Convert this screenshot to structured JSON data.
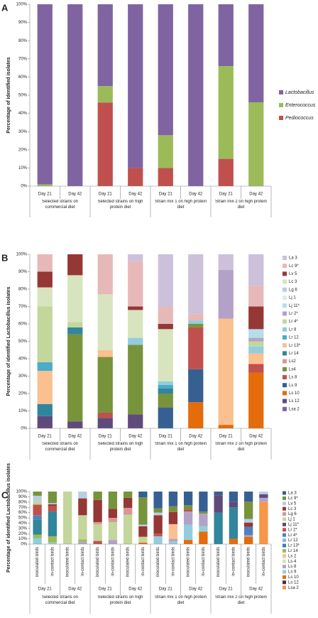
{
  "chart_data": [
    {
      "type": "bar",
      "stacked": true,
      "panel_label": "A",
      "ylabel": "Percentage of identified isolates",
      "categories": [
        "Day 21",
        "Day 42",
        "Day 21",
        "Day 42",
        "Day 21",
        "Day 42",
        "Day 21",
        "Day 42"
      ],
      "groups": [
        "Selected strains on commercial diet",
        "Selected strains on high protein diet",
        "Strain mix 1 on high protein diet",
        "Strain mix 2 on high protein diet"
      ],
      "ylim": [
        0,
        100
      ],
      "yticks": [
        {
          "value": 0,
          "label": "0%"
        },
        {
          "value": 10,
          "label": "10%"
        },
        {
          "value": 20,
          "label": "20%"
        },
        {
          "value": 30,
          "label": "30%"
        },
        {
          "value": 40,
          "label": "40%"
        },
        {
          "value": 50,
          "label": "50%"
        },
        {
          "value": 60,
          "label": "60%"
        },
        {
          "value": 70,
          "label": "70%"
        },
        {
          "value": 80,
          "label": "80%"
        },
        {
          "value": 90,
          "label": "90%"
        },
        {
          "value": 100,
          "label": "100%"
        }
      ],
      "legend": "right",
      "series": [
        {
          "name": "Lactobacillus",
          "color": "#8064a2",
          "values": [
            99,
            100,
            45,
            90,
            72,
            100,
            34,
            54
          ]
        },
        {
          "name": "Enterococcus",
          "color": "#9bbb59",
          "values": [
            1,
            0,
            9,
            0,
            18,
            0,
            51,
            46
          ]
        },
        {
          "name": "Pediococcus",
          "color": "#c0504d",
          "values": [
            0,
            0,
            46,
            10,
            10,
            0,
            15,
            0
          ]
        }
      ]
    },
    {
      "type": "bar",
      "stacked": true,
      "panel_label": "B",
      "ylabel": "Percentage of identified Lactobacillus isolates",
      "categories": [
        "Day 21",
        "Day 42",
        "Day 21",
        "Day 42",
        "Day 21",
        "Day 42",
        "Day 21",
        "Day 42"
      ],
      "groups": [
        "Selected strains on commercial diet",
        "Selected strains on high protein diet",
        "Strain mix 1 on high protein diet",
        "Strain mix 2 on high protein diet"
      ],
      "ylim": [
        0,
        100
      ],
      "yticks": [
        {
          "value": 0,
          "label": "0%"
        },
        {
          "value": 10,
          "label": "10%"
        },
        {
          "value": 20,
          "label": "20%"
        },
        {
          "value": 30,
          "label": "30%"
        },
        {
          "value": 40,
          "label": "40%"
        },
        {
          "value": 50,
          "label": "50%"
        },
        {
          "value": 60,
          "label": "60%"
        },
        {
          "value": 70,
          "label": "70%"
        },
        {
          "value": 80,
          "label": "80%"
        },
        {
          "value": 90,
          "label": "90%"
        },
        {
          "value": 100,
          "label": "100%"
        }
      ],
      "legend": "right",
      "series": [
        {
          "name": "La 3",
          "color": "#ccc0da",
          "values": [
            0,
            0,
            0,
            4,
            30,
            34,
            9,
            18
          ]
        },
        {
          "name": "Lc 9*",
          "color": "#e6b9b8",
          "values": [
            10,
            0,
            23,
            26,
            10,
            4,
            0,
            12
          ]
        },
        {
          "name": "Lv 5",
          "color": "#953735",
          "values": [
            9,
            12,
            0,
            2,
            3,
            0,
            0,
            13
          ]
        },
        {
          "name": "Lc 3",
          "color": "#d7e4bd",
          "values": [
            11,
            27,
            32,
            16,
            30,
            0,
            0,
            0
          ]
        },
        {
          "name": "Lg 6",
          "color": "#b9cde5",
          "values": [
            0,
            0,
            0,
            0,
            0,
            0,
            0,
            0
          ]
        },
        {
          "name": "Lj 1",
          "color": "#dbeef4",
          "values": [
            0,
            0,
            0,
            0,
            0,
            0,
            0,
            0
          ]
        },
        {
          "name": "Lj 11*",
          "color": "#b7dee8",
          "values": [
            0,
            0,
            0,
            0,
            0,
            0,
            0,
            5
          ]
        },
        {
          "name": "Lr 2*",
          "color": "#b3a2c7",
          "values": [
            0,
            0,
            0,
            0,
            0,
            0,
            28,
            2
          ]
        },
        {
          "name": "Lr 4*",
          "color": "#c3d69b",
          "values": [
            32,
            3,
            0,
            0,
            0,
            0,
            0,
            3
          ]
        },
        {
          "name": "Lr 8",
          "color": "#93cddd",
          "values": [
            0,
            0,
            0,
            4,
            2,
            2,
            0,
            4
          ]
        },
        {
          "name": "Lr 12",
          "color": "#4bacc6",
          "values": [
            5,
            0,
            0,
            0,
            2,
            0,
            0,
            0
          ]
        },
        {
          "name": "Lr 13*",
          "color": "#fac090",
          "values": [
            19,
            0,
            4,
            0,
            0,
            0,
            61,
            6
          ]
        },
        {
          "name": "Lr 14",
          "color": "#31859c",
          "values": [
            7,
            4,
            0,
            0,
            3,
            0,
            0,
            0
          ]
        },
        {
          "name": "Ls2",
          "color": "#d99694",
          "values": [
            0,
            0,
            0,
            0,
            0,
            0,
            0,
            0
          ]
        },
        {
          "name": "Ls4",
          "color": "#77933c",
          "values": [
            0,
            50,
            32,
            40,
            8,
            2,
            0,
            0
          ]
        },
        {
          "name": "Ls 8",
          "color": "#c0504d",
          "values": [
            0,
            0,
            3,
            0,
            0,
            24,
            0,
            5
          ]
        },
        {
          "name": "Ls 9",
          "color": "#376092",
          "values": [
            0,
            0,
            0,
            0,
            12,
            19,
            0,
            0
          ]
        },
        {
          "name": "Ls 10",
          "color": "#e46c0a",
          "values": [
            0,
            0,
            0,
            0,
            0,
            15,
            2,
            32
          ]
        },
        {
          "name": "Ls 12",
          "color": "#604a7b",
          "values": [
            7,
            4,
            6,
            8,
            0,
            0,
            0,
            0
          ]
        },
        {
          "name": "Lsa 2",
          "color": "#8064a2",
          "values": [
            0,
            0,
            0,
            0,
            0,
            0,
            0,
            0
          ]
        }
      ]
    },
    {
      "type": "bar",
      "stacked": true,
      "panel_label": "C",
      "ylabel": "Percentage of identified Lactobacillus isolates",
      "categories": [
        "inoculated birds",
        "in-contact birds",
        "inoculated birds",
        "in-contact birds",
        "inoculated birds",
        "in-contact birds",
        "inoculated birds",
        "in-contact birds",
        "inoculated birds",
        "in-contact birds",
        "inoculated birds",
        "in-contact birds",
        "inoculated birds",
        "in-contact birds",
        "inoculated birds",
        "in-contact birds"
      ],
      "subgroups": [
        "Day 21",
        "Day 42",
        "Day 21",
        "Day 42",
        "Day 21",
        "Day 42",
        "Day 21",
        "Day 42"
      ],
      "groups": [
        "Selected strains on commercial diet",
        "Selected strains on high protein diet",
        "Strain mix 1 on high protein diet",
        "Strain mix 2 on high protein diet"
      ],
      "ylim": [
        0,
        100
      ],
      "yticks": [
        {
          "value": 0,
          "label": "0%"
        },
        {
          "value": 10,
          "label": "10%"
        },
        {
          "value": 20,
          "label": "20%"
        },
        {
          "value": 30,
          "label": "30%"
        },
        {
          "value": 40,
          "label": "40%"
        },
        {
          "value": 50,
          "label": "50%"
        },
        {
          "value": 60,
          "label": "60%"
        },
        {
          "value": 70,
          "label": "70%"
        },
        {
          "value": 80,
          "label": "80%"
        },
        {
          "value": 90,
          "label": "90%"
        },
        {
          "value": 100,
          "label": "100%"
        }
      ],
      "legend": "right",
      "series": [
        {
          "name": "La 3",
          "color": "#366092",
          "values": [
            0,
            0,
            0,
            0,
            0,
            0,
            0,
            11,
            32,
            28,
            26,
            38,
            7,
            20,
            19,
            0
          ]
        },
        {
          "name": "Lc 9*",
          "color": "#77933c",
          "values": [
            8,
            22,
            0,
            0,
            16,
            33,
            12,
            52,
            8,
            11,
            8,
            4,
            0,
            0,
            33,
            0
          ]
        },
        {
          "name": "Lv 5",
          "color": "#b9cde5",
          "values": [
            10,
            2,
            0,
            13,
            0,
            0,
            0,
            3,
            5,
            0,
            0,
            0,
            0,
            0,
            7,
            5
          ]
        },
        {
          "name": "Lc 3",
          "color": "#953735",
          "values": [
            0,
            3,
            0,
            32,
            42,
            17,
            19,
            20,
            35,
            23,
            0,
            0,
            0,
            0,
            8,
            0
          ]
        },
        {
          "name": "Lg 6",
          "color": "#d99694",
          "values": [
            0,
            0,
            0,
            0,
            4,
            8,
            13,
            0,
            0,
            0,
            0,
            0,
            0,
            0,
            0,
            0
          ]
        },
        {
          "name": "Lj 1",
          "color": "#c3d69b",
          "values": [
            7,
            0,
            100,
            46,
            32,
            34,
            56,
            11,
            0,
            0,
            0,
            0,
            0,
            0,
            0,
            0
          ]
        },
        {
          "name": "Lj 11*",
          "color": "#604a7b",
          "values": [
            0,
            0,
            0,
            0,
            0,
            0,
            0,
            0,
            0,
            0,
            0,
            0,
            33,
            10,
            0,
            7
          ]
        },
        {
          "name": "Lr 2*",
          "color": "#c0504d",
          "values": [
            20,
            11,
            0,
            0,
            6,
            0,
            0,
            0,
            5,
            0,
            4,
            0,
            0,
            0,
            0,
            0
          ]
        },
        {
          "name": "Lr 4*",
          "color": "#4f81bd",
          "values": [
            8,
            0,
            0,
            0,
            0,
            0,
            0,
            0,
            0,
            0,
            0,
            0,
            0,
            0,
            16,
            0
          ]
        },
        {
          "name": "Lr 12",
          "color": "#8eb4e3",
          "values": [
            0,
            0,
            0,
            0,
            0,
            0,
            0,
            0,
            0,
            0,
            0,
            0,
            0,
            0,
            0,
            0
          ]
        },
        {
          "name": "Lr 13*",
          "color": "#31859c",
          "values": [
            29,
            47,
            0,
            0,
            0,
            0,
            0,
            0,
            0,
            0,
            0,
            0,
            60,
            60,
            0,
            0
          ]
        },
        {
          "name": "Lr 14",
          "color": "#9bbb59",
          "values": [
            7,
            12,
            0,
            4,
            0,
            0,
            0,
            0,
            0,
            0,
            0,
            0,
            0,
            0,
            0,
            0
          ]
        },
        {
          "name": "Ls 2",
          "color": "#fac090",
          "values": [
            0,
            0,
            0,
            0,
            0,
            0,
            0,
            0,
            0,
            28,
            0,
            0,
            0,
            0,
            0,
            0
          ]
        },
        {
          "name": "Ls 4",
          "color": "#d7e4bd",
          "values": [
            0,
            0,
            0,
            0,
            0,
            0,
            0,
            0,
            0,
            0,
            0,
            0,
            0,
            0,
            0,
            0
          ]
        },
        {
          "name": "Ls 8",
          "color": "#b3a2c7",
          "values": [
            0,
            0,
            0,
            5,
            0,
            8,
            0,
            0,
            0,
            5,
            25,
            24,
            0,
            0,
            3,
            8
          ]
        },
        {
          "name": "Ls 9",
          "color": "#93cddd",
          "values": [
            11,
            3,
            0,
            0,
            0,
            0,
            0,
            0,
            15,
            5,
            29,
            10,
            0,
            0,
            0,
            0
          ]
        },
        {
          "name": "Ls 10",
          "color": "#e46c0a",
          "values": [
            0,
            0,
            0,
            0,
            0,
            0,
            0,
            3,
            0,
            0,
            8,
            24,
            0,
            10,
            14,
            0
          ]
        },
        {
          "name": "Ls 12",
          "color": "#403152",
          "values": [
            0,
            0,
            0,
            0,
            0,
            0,
            0,
            0,
            0,
            0,
            0,
            0,
            0,
            0,
            0,
            0
          ]
        },
        {
          "name": "Lsa 2",
          "color": "#f79646",
          "values": [
            0,
            0,
            0,
            0,
            0,
            0,
            0,
            0,
            0,
            0,
            0,
            0,
            0,
            0,
            0,
            80
          ]
        }
      ]
    }
  ]
}
